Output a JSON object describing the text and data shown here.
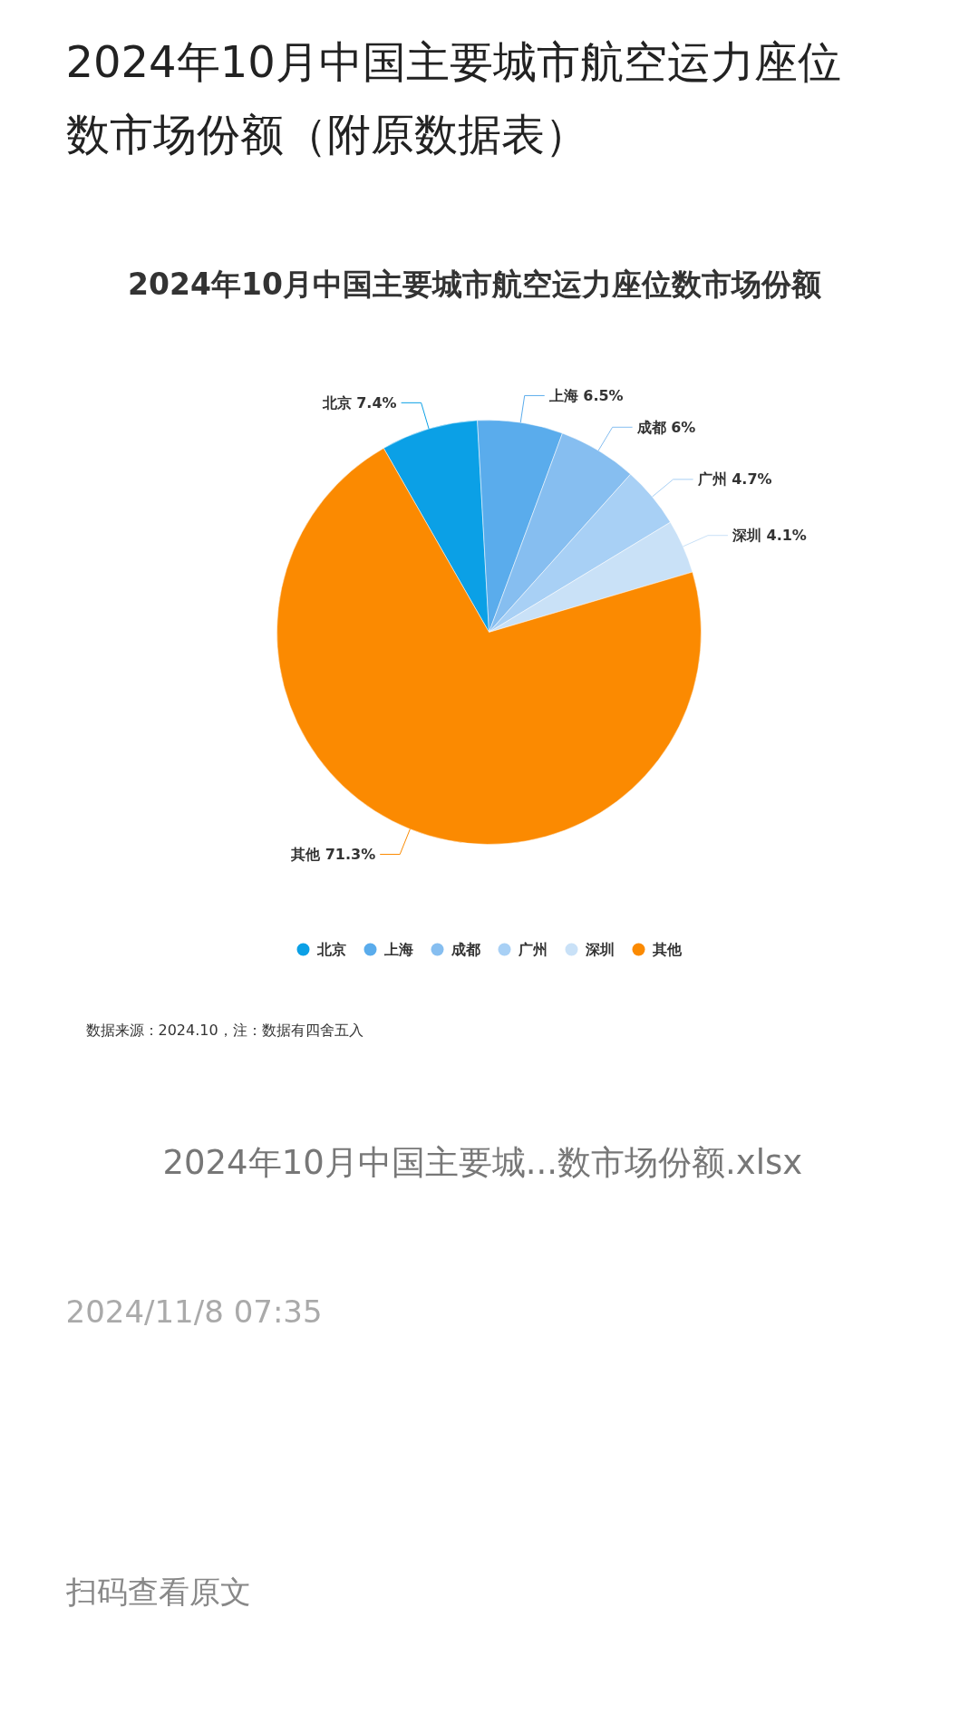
{
  "chart_data": {
    "type": "pie",
    "title": "2024年10月中国主要城市航空运力座位数市场份额（附原数据表）",
    "subtitle": "2024年10月中国主要城市航空运力座位数市场份额",
    "categories": [
      "北京",
      "上海",
      "成都",
      "广州",
      "深圳",
      "其他"
    ],
    "values": [
      7.4,
      6.5,
      6,
      4.7,
      4.1,
      71.3
    ],
    "colors": [
      "#0ba0e6",
      "#5aacec",
      "#86bef0",
      "#a8d0f5",
      "#c9e1f7",
      "#fb8a01"
    ],
    "value_labels": [
      "7.4%",
      "6.5%",
      "6%",
      "4.7%",
      "4.1%",
      "71.3%"
    ],
    "legend": "bottom",
    "annotations": [
      "数据来源：2024.10，注：数据有四舍五入",
      "2024年10月中国主要城...数市场份额.xlsx",
      "2024/11/8 07:35",
      "扫码查看原文"
    ]
  }
}
